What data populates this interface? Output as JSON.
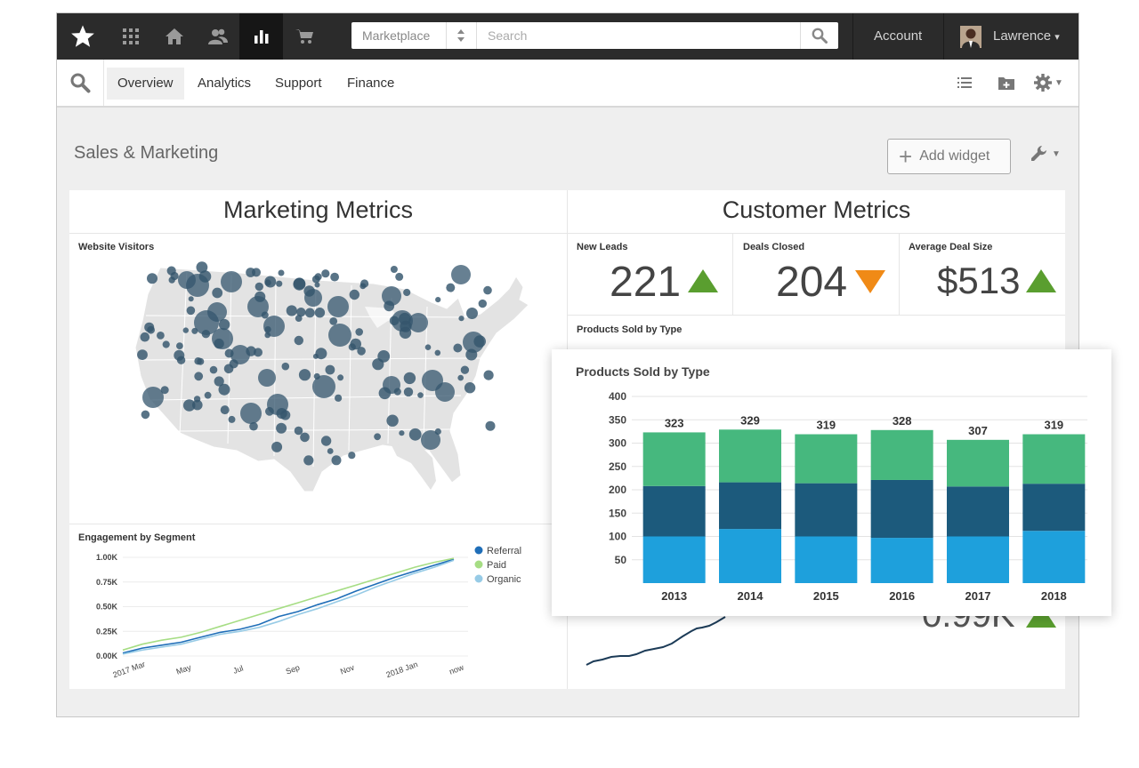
{
  "topbar": {
    "icons": [
      "star-logo-icon",
      "apps-grid-icon",
      "home-icon",
      "users-icon",
      "bar-chart-icon",
      "cart-icon"
    ],
    "search_scope": "Marketplace",
    "search_placeholder": "Search",
    "account_label": "Account",
    "user_name": "Lawrence",
    "user_caret": "▾"
  },
  "subnav": {
    "tabs": [
      "Overview",
      "Analytics",
      "Support",
      "Finance"
    ],
    "active_tab": "Overview"
  },
  "page": {
    "title": "Sales & Marketing",
    "add_widget_label": "Add widget"
  },
  "marketing": {
    "title": "Marketing Metrics",
    "website_visitors_title": "Website Visitors",
    "engagement_title": "Engagement by Segment"
  },
  "customer": {
    "title": "Customer Metrics",
    "kpis": [
      {
        "label": "New Leads",
        "value": "221",
        "trend": "up"
      },
      {
        "label": "Deals Closed",
        "value": "204",
        "trend": "down"
      },
      {
        "label": "Average Deal Size",
        "value": "$513",
        "trend": "up"
      }
    ],
    "products_title": "Products Sold by Type",
    "partial_value": "0.99K"
  },
  "colors": {
    "up": "#5a9e2f",
    "down": "#f08a16",
    "bar_bottom": "#1ea0dc",
    "bar_middle": "#1c5a7c",
    "bar_top": "#46b87e",
    "referral": "#1f6eb8",
    "paid": "#a6dd84",
    "organic": "#97cbe6",
    "map_dot": "#34566d"
  },
  "chart_data": [
    {
      "type": "bar",
      "title": "Products Sold by Type",
      "categories": [
        "2013",
        "2014",
        "2015",
        "2016",
        "2017",
        "2018"
      ],
      "totals": [
        323,
        329,
        319,
        328,
        307,
        319
      ],
      "series": [
        {
          "values": [
            100,
            116,
            100,
            97,
            100,
            112
          ]
        },
        {
          "values": [
            108,
            100,
            114,
            124,
            107,
            101
          ]
        },
        {
          "values": [
            115,
            113,
            105,
            107,
            100,
            106
          ]
        }
      ],
      "yticks": [
        "400",
        "350",
        "300",
        "250",
        "200",
        "150",
        "100",
        "50"
      ],
      "ylim": [
        0,
        400
      ],
      "stacked": true,
      "grid": true
    },
    {
      "type": "line",
      "title": "Engagement by Segment",
      "xticks": [
        "2017 Mar",
        "May",
        "Jul",
        "Sep",
        "Nov",
        "2018 Jan",
        "now"
      ],
      "yticks": [
        "1.00K",
        "0.75K",
        "0.50K",
        "0.25K",
        "0.00K"
      ],
      "ylim": [
        0,
        1000
      ],
      "legend_position": "top-right",
      "series": [
        {
          "name": "Referral",
          "values": [
            30,
            80,
            110,
            140,
            190,
            240,
            270,
            320,
            400,
            450,
            520,
            580,
            660,
            730,
            800,
            860,
            920,
            980
          ]
        },
        {
          "name": "Paid",
          "values": [
            60,
            120,
            160,
            190,
            240,
            300,
            360,
            420,
            480,
            540,
            600,
            660,
            720,
            780,
            840,
            900,
            950,
            990
          ]
        },
        {
          "name": "Organic",
          "values": [
            20,
            60,
            90,
            120,
            170,
            220,
            250,
            290,
            350,
            420,
            480,
            550,
            620,
            700,
            770,
            840,
            900,
            970
          ]
        }
      ]
    }
  ]
}
